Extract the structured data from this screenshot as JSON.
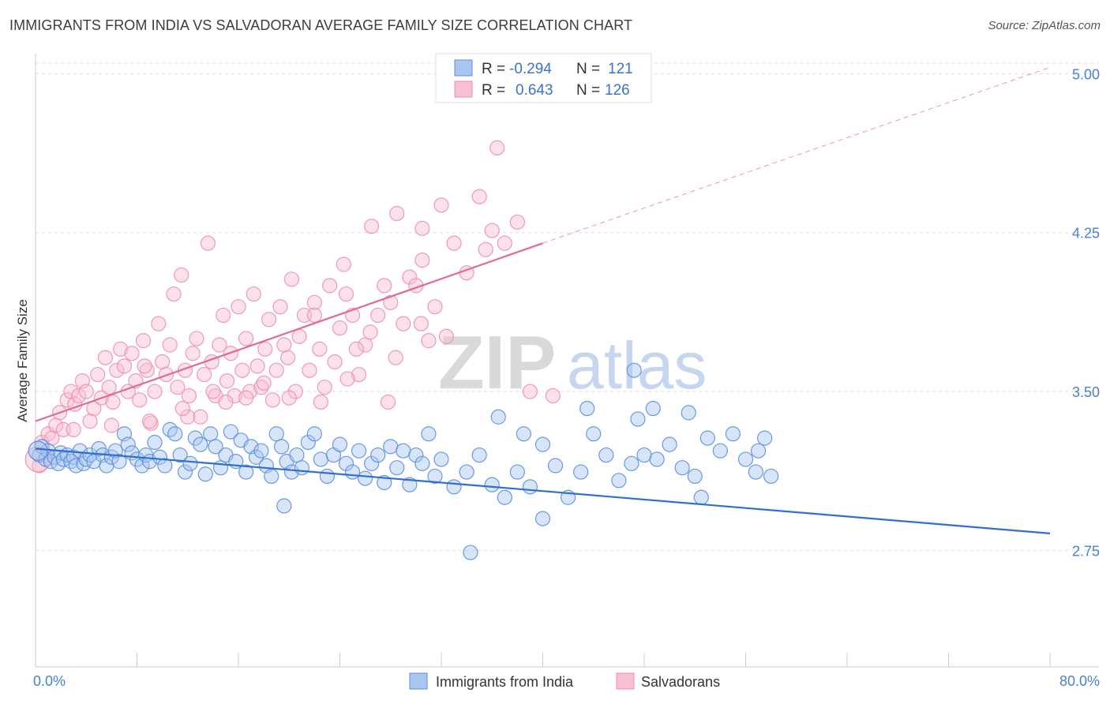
{
  "title": "IMMIGRANTS FROM INDIA VS SALVADORAN AVERAGE FAMILY SIZE CORRELATION CHART",
  "source": "Source: ZipAtlas.com",
  "watermark": {
    "zip": "ZIP",
    "atlas": "atlas"
  },
  "colors": {
    "blue": "#5b8fe0",
    "blue_fill": "#a9c6f0",
    "blue_line": "#2f6fce",
    "pink": "#ee8fae",
    "pink_fill": "#f7bfd1",
    "pink_line": "#e06a93",
    "grid": "#dddddd",
    "tick_text": "#4a7fd4"
  },
  "legend": {
    "rows": [
      {
        "r_label": "R =",
        "r_value": "-0.294",
        "n_label": "N =",
        "n_value": "121",
        "swatch": "blue"
      },
      {
        "r_label": "R =",
        "r_value": "0.643",
        "n_label": "N =",
        "n_value": "126",
        "swatch": "pink"
      }
    ]
  },
  "chart_data": {
    "type": "scatter",
    "title": "IMMIGRANTS FROM INDIA VS SALVADORAN AVERAGE FAMILY SIZE CORRELATION CHART",
    "xlabel": "",
    "ylabel": "Average Family Size",
    "xlim": [
      0,
      80
    ],
    "ylim": [
      2.2,
      5.05
    ],
    "x_tick_labels": [
      "0.0%",
      "80.0%"
    ],
    "y_ticks": [
      2.75,
      3.5,
      4.25,
      5.0
    ],
    "y_tick_labels": [
      "2.75",
      "3.50",
      "4.25",
      "5.00"
    ],
    "grid": true,
    "legend_placement": "top-center",
    "series": [
      {
        "name": "Immigrants from India",
        "color": "blue",
        "trend": {
          "x": [
            0,
            80
          ],
          "y": [
            3.23,
            2.83
          ],
          "style": "solid"
        },
        "points": [
          [
            0.3,
            3.2
          ],
          [
            0.5,
            3.24
          ],
          [
            0.8,
            3.18
          ],
          [
            1.0,
            3.22
          ],
          [
            1.2,
            3.17
          ],
          [
            1.5,
            3.19
          ],
          [
            1.8,
            3.16
          ],
          [
            2.0,
            3.21
          ],
          [
            2.2,
            3.18
          ],
          [
            2.5,
            3.2
          ],
          [
            2.8,
            3.17
          ],
          [
            3.0,
            3.19
          ],
          [
            3.2,
            3.15
          ],
          [
            3.5,
            3.22
          ],
          [
            3.8,
            3.16
          ],
          [
            4.0,
            3.18
          ],
          [
            4.3,
            3.2
          ],
          [
            4.6,
            3.17
          ],
          [
            5.0,
            3.23
          ],
          [
            5.3,
            3.2
          ],
          [
            5.6,
            3.15
          ],
          [
            6.0,
            3.19
          ],
          [
            6.3,
            3.22
          ],
          [
            6.6,
            3.17
          ],
          [
            7.0,
            3.3
          ],
          [
            7.3,
            3.25
          ],
          [
            7.6,
            3.21
          ],
          [
            8.0,
            3.18
          ],
          [
            8.4,
            3.15
          ],
          [
            8.7,
            3.2
          ],
          [
            9.0,
            3.17
          ],
          [
            9.4,
            3.26
          ],
          [
            9.8,
            3.19
          ],
          [
            10.2,
            3.15
          ],
          [
            10.6,
            3.32
          ],
          [
            11.0,
            3.3
          ],
          [
            11.4,
            3.2
          ],
          [
            11.8,
            3.12
          ],
          [
            12.2,
            3.16
          ],
          [
            12.6,
            3.28
          ],
          [
            13.0,
            3.25
          ],
          [
            13.4,
            3.11
          ],
          [
            13.8,
            3.3
          ],
          [
            14.2,
            3.24
          ],
          [
            14.6,
            3.14
          ],
          [
            15.0,
            3.2
          ],
          [
            15.4,
            3.31
          ],
          [
            15.8,
            3.17
          ],
          [
            16.2,
            3.27
          ],
          [
            16.6,
            3.12
          ],
          [
            17.0,
            3.24
          ],
          [
            17.4,
            3.19
          ],
          [
            17.8,
            3.22
          ],
          [
            18.2,
            3.15
          ],
          [
            18.6,
            3.1
          ],
          [
            19.0,
            3.3
          ],
          [
            19.4,
            3.24
          ],
          [
            19.8,
            3.17
          ],
          [
            20.2,
            3.12
          ],
          [
            20.6,
            3.2
          ],
          [
            21.0,
            3.14
          ],
          [
            21.5,
            3.26
          ],
          [
            22.0,
            3.3
          ],
          [
            22.5,
            3.18
          ],
          [
            23.0,
            3.1
          ],
          [
            23.5,
            3.2
          ],
          [
            24.0,
            3.25
          ],
          [
            24.5,
            3.16
          ],
          [
            25.0,
            3.12
          ],
          [
            25.5,
            3.22
          ],
          [
            26.0,
            3.09
          ],
          [
            26.5,
            3.16
          ],
          [
            27.0,
            3.2
          ],
          [
            27.5,
            3.07
          ],
          [
            28.0,
            3.24
          ],
          [
            28.5,
            3.14
          ],
          [
            29.0,
            3.22
          ],
          [
            29.5,
            3.06
          ],
          [
            30.0,
            3.2
          ],
          [
            30.5,
            3.16
          ],
          [
            31.0,
            3.3
          ],
          [
            31.5,
            3.1
          ],
          [
            32.0,
            3.18
          ],
          [
            33.0,
            3.05
          ],
          [
            34.0,
            3.12
          ],
          [
            35.0,
            3.2
          ],
          [
            36.0,
            3.06
          ],
          [
            37.0,
            3.0
          ],
          [
            38.0,
            3.12
          ],
          [
            39.0,
            3.05
          ],
          [
            40.0,
            3.25
          ],
          [
            41.0,
            3.15
          ],
          [
            42.0,
            3.0
          ],
          [
            43.0,
            3.12
          ],
          [
            44.0,
            3.3
          ],
          [
            45.0,
            3.2
          ],
          [
            46.0,
            3.08
          ],
          [
            47.0,
            3.16
          ],
          [
            48.0,
            3.2
          ],
          [
            49.0,
            3.18
          ],
          [
            50.0,
            3.25
          ],
          [
            51.0,
            3.14
          ],
          [
            52.0,
            3.1
          ],
          [
            53.0,
            3.28
          ],
          [
            54.0,
            3.22
          ],
          [
            55.0,
            3.3
          ],
          [
            56.0,
            3.18
          ],
          [
            57.0,
            3.22
          ],
          [
            36.5,
            3.38
          ],
          [
            38.5,
            3.3
          ],
          [
            43.5,
            3.42
          ],
          [
            47.5,
            3.37
          ],
          [
            51.5,
            3.4
          ],
          [
            57.5,
            3.28
          ],
          [
            56.8,
            3.12
          ],
          [
            58.0,
            3.1
          ],
          [
            40.0,
            2.9
          ],
          [
            52.5,
            3.0
          ],
          [
            19.6,
            2.96
          ],
          [
            34.3,
            2.74
          ],
          [
            47.2,
            3.6
          ],
          [
            48.7,
            3.42
          ]
        ]
      },
      {
        "name": "Salvadorans",
        "color": "pink",
        "trend": {
          "x": [
            0,
            40
          ],
          "y": [
            3.36,
            4.2
          ],
          "style": "solid",
          "extended": {
            "x": [
              40,
              80
            ],
            "y": [
              4.2,
              5.03
            ],
            "style": "dashed"
          }
        },
        "points": [
          [
            0.3,
            3.15
          ],
          [
            0.5,
            3.26
          ],
          [
            0.8,
            3.2
          ],
          [
            1.0,
            3.3
          ],
          [
            1.3,
            3.28
          ],
          [
            1.6,
            3.34
          ],
          [
            1.9,
            3.4
          ],
          [
            2.2,
            3.32
          ],
          [
            2.5,
            3.46
          ],
          [
            2.8,
            3.5
          ],
          [
            3.1,
            3.44
          ],
          [
            3.4,
            3.48
          ],
          [
            3.7,
            3.55
          ],
          [
            4.0,
            3.5
          ],
          [
            4.3,
            3.36
          ],
          [
            4.6,
            3.42
          ],
          [
            4.9,
            3.58
          ],
          [
            5.2,
            3.47
          ],
          [
            5.5,
            3.66
          ],
          [
            5.8,
            3.52
          ],
          [
            6.1,
            3.45
          ],
          [
            6.4,
            3.6
          ],
          [
            6.7,
            3.7
          ],
          [
            7.0,
            3.62
          ],
          [
            7.3,
            3.5
          ],
          [
            7.6,
            3.68
          ],
          [
            7.9,
            3.55
          ],
          [
            8.2,
            3.46
          ],
          [
            8.5,
            3.74
          ],
          [
            8.8,
            3.6
          ],
          [
            9.1,
            3.35
          ],
          [
            9.4,
            3.5
          ],
          [
            9.7,
            3.82
          ],
          [
            10.0,
            3.64
          ],
          [
            10.3,
            3.58
          ],
          [
            10.6,
            3.72
          ],
          [
            10.9,
            3.96
          ],
          [
            11.2,
            3.52
          ],
          [
            11.5,
            4.05
          ],
          [
            11.8,
            3.6
          ],
          [
            12.1,
            3.48
          ],
          [
            12.4,
            3.68
          ],
          [
            12.7,
            3.75
          ],
          [
            13.0,
            3.38
          ],
          [
            13.3,
            3.58
          ],
          [
            13.6,
            4.2
          ],
          [
            13.9,
            3.64
          ],
          [
            14.2,
            3.48
          ],
          [
            14.5,
            3.72
          ],
          [
            14.8,
            3.86
          ],
          [
            15.1,
            3.55
          ],
          [
            15.4,
            3.68
          ],
          [
            15.7,
            3.48
          ],
          [
            16.0,
            3.9
          ],
          [
            16.3,
            3.6
          ],
          [
            16.6,
            3.75
          ],
          [
            16.9,
            3.5
          ],
          [
            17.2,
            3.96
          ],
          [
            17.5,
            3.62
          ],
          [
            17.8,
            3.52
          ],
          [
            18.1,
            3.7
          ],
          [
            18.4,
            3.84
          ],
          [
            18.7,
            3.46
          ],
          [
            19.0,
            3.6
          ],
          [
            19.3,
            3.9
          ],
          [
            19.6,
            3.72
          ],
          [
            19.9,
            3.66
          ],
          [
            20.2,
            4.03
          ],
          [
            20.5,
            3.5
          ],
          [
            20.8,
            3.76
          ],
          [
            21.2,
            3.86
          ],
          [
            21.6,
            3.6
          ],
          [
            22.0,
            3.92
          ],
          [
            22.4,
            3.7
          ],
          [
            22.8,
            3.52
          ],
          [
            23.2,
            4.0
          ],
          [
            23.6,
            3.64
          ],
          [
            24.0,
            3.8
          ],
          [
            24.5,
            3.96
          ],
          [
            25.0,
            3.86
          ],
          [
            25.5,
            3.58
          ],
          [
            26.0,
            3.72
          ],
          [
            26.5,
            4.28
          ],
          [
            27.0,
            3.86
          ],
          [
            27.5,
            4.0
          ],
          [
            28.0,
            3.92
          ],
          [
            28.5,
            4.34
          ],
          [
            29.0,
            3.82
          ],
          [
            29.5,
            4.04
          ],
          [
            30.0,
            4.0
          ],
          [
            30.5,
            4.12
          ],
          [
            31.0,
            3.74
          ],
          [
            31.5,
            3.9
          ],
          [
            32.0,
            4.38
          ],
          [
            33.0,
            4.2
          ],
          [
            34.0,
            4.06
          ],
          [
            35.0,
            4.42
          ],
          [
            36.0,
            4.26
          ],
          [
            37.0,
            4.2
          ],
          [
            38.0,
            4.3
          ],
          [
            39.0,
            3.5
          ],
          [
            22.5,
            3.45
          ],
          [
            24.6,
            3.56
          ],
          [
            27.8,
            3.45
          ],
          [
            12.0,
            3.38
          ],
          [
            9.0,
            3.36
          ],
          [
            6.0,
            3.34
          ],
          [
            3.0,
            3.32
          ],
          [
            18.0,
            3.54
          ],
          [
            20.0,
            3.47
          ],
          [
            30.4,
            3.82
          ],
          [
            28.4,
            3.66
          ],
          [
            26.4,
            3.78
          ],
          [
            25.3,
            3.7
          ],
          [
            32.4,
            3.76
          ],
          [
            15.0,
            3.45
          ],
          [
            16.6,
            3.47
          ],
          [
            14.0,
            3.5
          ],
          [
            11.6,
            3.42
          ],
          [
            8.6,
            3.62
          ],
          [
            35.5,
            4.17
          ],
          [
            22.0,
            3.86
          ],
          [
            24.3,
            4.1
          ],
          [
            30.5,
            4.27
          ],
          [
            36.4,
            4.65
          ],
          [
            40.8,
            3.48
          ]
        ]
      }
    ]
  },
  "bottom_legend": {
    "items": [
      {
        "label": "Immigrants from India",
        "swatch": "blue"
      },
      {
        "label": "Salvadorans",
        "swatch": "pink"
      }
    ]
  }
}
